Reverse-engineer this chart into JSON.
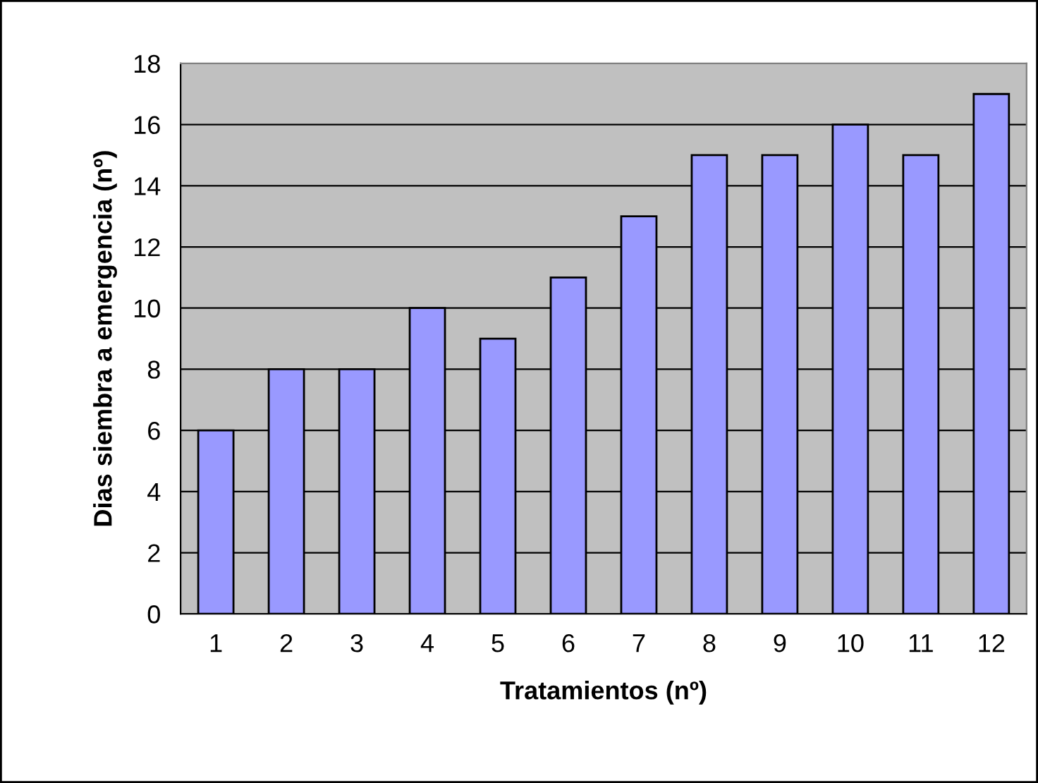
{
  "chart_data": {
    "type": "bar",
    "xlabel": "Tratamientos (nº)",
    "ylabel": "Dias siembra a emergencia (nº)",
    "categories": [
      "1",
      "2",
      "3",
      "4",
      "5",
      "6",
      "7",
      "8",
      "9",
      "10",
      "11",
      "12"
    ],
    "values": [
      6,
      8,
      8,
      10,
      9,
      11,
      13,
      15,
      15,
      16,
      15,
      17
    ],
    "color": "#9999ff",
    "ylim": [
      0,
      18
    ],
    "yticks": [
      0,
      2,
      4,
      6,
      8,
      10,
      12,
      14,
      16,
      18
    ],
    "grid": "y"
  }
}
